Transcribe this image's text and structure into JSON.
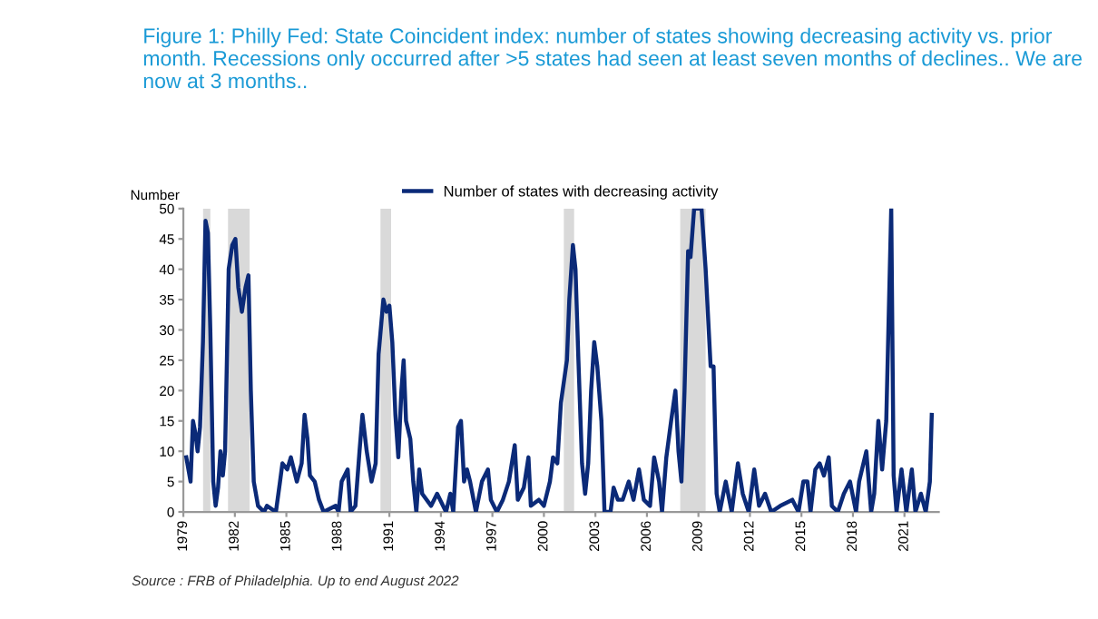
{
  "chart_data": {
    "type": "line",
    "title": "Figure 1: Philly Fed: State Coincident index: number of states showing decreasing activity vs. prior month. Recessions only occurred after >5 states had seen at least seven months of declines.. We are now at 3 months..",
    "ylabel": "Number",
    "x": [
      1979.17,
      1979.42,
      1979.56,
      1979.7,
      1979.83,
      1979.97,
      1980.14,
      1980.29,
      1980.43,
      1980.57,
      1980.74,
      1980.88,
      1981.02,
      1981.16,
      1981.3,
      1981.43,
      1981.64,
      1981.85,
      1982.03,
      1982.2,
      1982.41,
      1982.62,
      1982.79,
      1982.93,
      1983.1,
      1983.35,
      1983.7,
      1983.87,
      1984.39,
      1984.63,
      1984.77,
      1985.05,
      1985.26,
      1985.61,
      1985.89,
      1986.06,
      1986.23,
      1986.37,
      1986.65,
      1986.9,
      1987.17,
      1987.87,
      1988.04,
      1988.22,
      1988.57,
      1988.74,
      1989.02,
      1989.26,
      1989.43,
      1989.68,
      1989.96,
      1990.2,
      1990.37,
      1990.65,
      1990.83,
      1991.0,
      1991.17,
      1991.35,
      1991.52,
      1991.7,
      1991.83,
      1991.97,
      1992.22,
      1992.39,
      1992.57,
      1992.74,
      1992.91,
      1993.43,
      1993.78,
      1994.3,
      1994.55,
      1994.72,
      1995.0,
      1995.17,
      1995.35,
      1995.52,
      1995.7,
      1996.04,
      1996.39,
      1996.74,
      1996.91,
      1997.26,
      1997.61,
      1997.96,
      1998.3,
      1998.48,
      1998.83,
      1999.1,
      1999.24,
      1999.7,
      2000.0,
      2000.35,
      2000.53,
      2000.78,
      2000.99,
      2001.24,
      2001.34,
      2001.48,
      2001.69,
      2001.84,
      2002.01,
      2002.22,
      2002.4,
      2002.58,
      2002.75,
      2002.93,
      2003.11,
      2003.35,
      2003.53,
      2003.88,
      2004.06,
      2004.31,
      2004.59,
      2004.94,
      2005.22,
      2005.54,
      2005.82,
      2006.18,
      2006.42,
      2006.71,
      2006.88,
      2007.13,
      2007.41,
      2007.66,
      2007.84,
      2008.01,
      2008.19,
      2008.4,
      2008.54,
      2008.75,
      2009.18,
      2009.42,
      2009.71,
      2009.88,
      2010.06,
      2010.24,
      2010.59,
      2010.94,
      2011.3,
      2011.58,
      2011.93,
      2012.25,
      2012.53,
      2012.88,
      2013.24,
      2013.77,
      2014.47,
      2014.83,
      2015.11,
      2015.35,
      2015.53,
      2015.81,
      2016.06,
      2016.31,
      2016.59,
      2016.77,
      2017.12,
      2017.47,
      2017.83,
      2018.18,
      2018.36,
      2018.78,
      2019.06,
      2019.24,
      2019.48,
      2019.7,
      2019.94,
      2020.23,
      2020.37,
      2020.54,
      2020.83,
      2021.11,
      2021.43,
      2021.64,
      2021.96,
      2022.24,
      2022.48,
      2022.59
    ],
    "series": [
      {
        "name": "Number of states with decreasing activity",
        "color": "#0b2a78",
        "values": [
          9,
          5,
          15,
          13,
          10,
          14,
          28,
          48,
          46,
          30,
          5,
          1,
          4,
          10,
          6,
          10,
          40,
          44,
          45,
          37,
          33,
          37,
          39,
          20,
          5,
          1,
          0,
          1,
          0,
          5,
          8,
          7,
          9,
          5,
          8,
          16,
          12,
          6,
          5,
          2,
          0,
          1,
          0,
          5,
          7,
          0,
          1,
          10,
          16,
          10,
          5,
          8,
          26,
          35,
          33,
          34,
          28,
          16,
          9,
          20,
          25,
          15,
          12,
          5,
          0,
          7,
          3,
          1,
          3,
          0,
          3,
          0,
          14,
          15,
          5,
          7,
          5,
          0,
          5,
          7,
          2,
          0,
          2,
          5,
          11,
          2,
          4,
          9,
          1,
          2,
          1,
          5,
          9,
          8,
          18,
          23,
          25,
          35,
          44,
          40,
          25,
          8,
          3,
          8,
          20,
          28,
          24,
          15,
          0,
          0,
          4,
          2,
          2,
          5,
          2,
          7,
          2,
          1,
          9,
          5,
          0,
          9,
          15,
          20,
          10,
          5,
          20,
          43,
          42,
          50,
          50,
          40,
          24,
          24,
          3,
          0,
          5,
          0,
          8,
          3,
          0,
          7,
          1,
          3,
          0,
          1,
          2,
          0,
          5,
          5,
          0,
          7,
          8,
          6,
          9,
          1,
          0,
          3,
          5,
          0,
          5,
          10,
          0,
          3,
          15,
          7,
          15,
          50,
          6,
          0,
          7,
          0,
          7,
          0,
          3,
          0,
          5,
          16
        ]
      }
    ],
    "xlim": [
      1979,
      2023
    ],
    "xticks": [
      1979,
      1982,
      1985,
      1988,
      1991,
      1994,
      1997,
      2000,
      2003,
      2006,
      2009,
      2012,
      2015,
      2018,
      2021
    ],
    "ylim": [
      0,
      50
    ],
    "yticks": [
      0,
      5,
      10,
      15,
      20,
      25,
      30,
      35,
      40,
      45,
      50
    ],
    "bands": [
      {
        "axis": "x",
        "from": 1980.15,
        "to": 1980.57,
        "color": "#d9d9d9"
      },
      {
        "axis": "x",
        "from": 1981.6,
        "to": 1982.86,
        "color": "#d9d9d9"
      },
      {
        "axis": "x",
        "from": 1990.48,
        "to": 1991.1,
        "color": "#d9d9d9"
      },
      {
        "axis": "x",
        "from": 2001.16,
        "to": 2001.76,
        "color": "#d9d9d9"
      },
      {
        "axis": "x",
        "from": 2007.94,
        "to": 2009.42,
        "color": "#d9d9d9"
      }
    ],
    "grid": false,
    "legend": "top",
    "marker": "none",
    "line_style": "solid",
    "annotations": [
      "Source : FRB of Philadelphia. Up to end August 2022"
    ]
  }
}
